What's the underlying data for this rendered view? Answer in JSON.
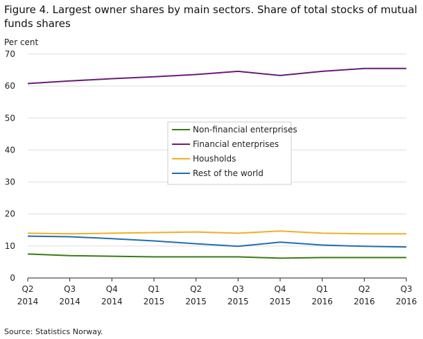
{
  "chart_data": {
    "type": "line",
    "title": "Figure 4. Largest owner shares by main sectors. Share of total stocks of mutual funds shares",
    "ylabel": "Per cent",
    "xlabel": "",
    "ylim": [
      0,
      70
    ],
    "yticks": [
      "0",
      "10",
      "20",
      "30",
      "40",
      "50",
      "60",
      "70"
    ],
    "grid": true,
    "legend_position": "center",
    "categories": [
      {
        "q": "Q2",
        "y": "2014"
      },
      {
        "q": "Q3",
        "y": "2014"
      },
      {
        "q": "Q4",
        "y": "2014"
      },
      {
        "q": "Q1",
        "y": "2015"
      },
      {
        "q": "Q2",
        "y": "2015"
      },
      {
        "q": "Q3",
        "y": "2015"
      },
      {
        "q": "Q4",
        "y": "2015"
      },
      {
        "q": "Q1",
        "y": "2016"
      },
      {
        "q": "Q2",
        "y": "2016"
      },
      {
        "q": "Q3",
        "y": "2016"
      }
    ],
    "series": [
      {
        "name": "Non-financial enterprises",
        "color": "#3a7a12",
        "values": [
          7.5,
          7.0,
          6.8,
          6.6,
          6.6,
          6.6,
          6.2,
          6.4,
          6.4,
          6.4
        ]
      },
      {
        "name": "Financial enterprises",
        "color": "#6b1b7a",
        "values": [
          60.8,
          61.6,
          62.3,
          62.9,
          63.6,
          64.6,
          63.3,
          64.6,
          65.5,
          65.5
        ]
      },
      {
        "name": "Housholds",
        "color": "#f0b020",
        "values": [
          14.0,
          13.8,
          14.0,
          14.2,
          14.4,
          14.0,
          14.7,
          14.0,
          13.8,
          13.8
        ]
      },
      {
        "name": "Rest of the world",
        "color": "#1f6eb0",
        "values": [
          13.1,
          12.9,
          12.3,
          11.6,
          10.7,
          9.9,
          11.2,
          10.3,
          9.9,
          9.7
        ]
      }
    ],
    "source": "Source: Statistics Norway."
  }
}
